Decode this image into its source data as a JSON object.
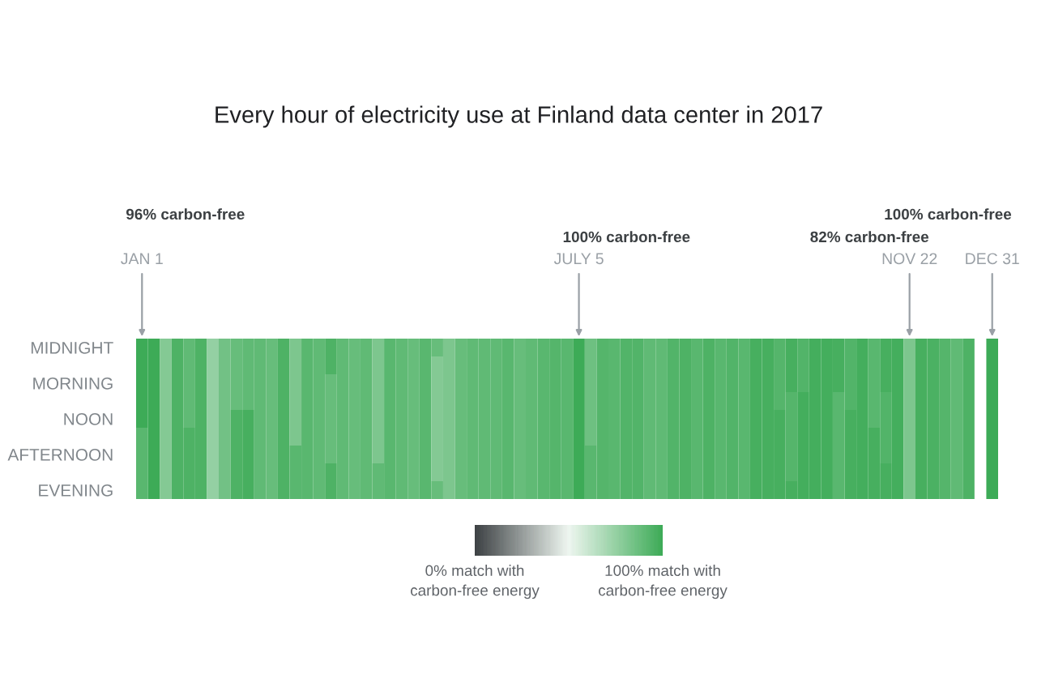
{
  "chart_data": {
    "type": "heatmap",
    "title": "Every hour of electricity use at Finland data center in 2017",
    "categories": [
      "JAN 1",
      null,
      null,
      null,
      null,
      null,
      null,
      null,
      null,
      null,
      null,
      null,
      null,
      null,
      null,
      null,
      null,
      null,
      null,
      null,
      null,
      null,
      null,
      null,
      null,
      null,
      null,
      null,
      null,
      null,
      null,
      null,
      null,
      null,
      null,
      null,
      null,
      "JULY 5",
      null,
      null,
      null,
      null,
      null,
      null,
      null,
      null,
      null,
      null,
      null,
      null,
      null,
      null,
      null,
      null,
      null,
      null,
      null,
      null,
      null,
      null,
      null,
      null,
      null,
      null,
      null,
      "NOV 22",
      null,
      null,
      null,
      null,
      null,
      null,
      "DEC 31"
    ],
    "y_categories": [
      "MIDNIGHT",
      null,
      "MORNING",
      null,
      "NOON",
      null,
      "AFTERNOON",
      null,
      "EVENING"
    ],
    "cells": [
      [
        100,
        100,
        80,
        95,
        90,
        95,
        75,
        85,
        88,
        90,
        90,
        88,
        95,
        82,
        92,
        90,
        95,
        90,
        88,
        90,
        82,
        92,
        90,
        88,
        92,
        88,
        82,
        88,
        90,
        90,
        90,
        92,
        88,
        90,
        92,
        93,
        92,
        100,
        86,
        93,
        92,
        94,
        94,
        90,
        90,
        94,
        95,
        92,
        95,
        92,
        94,
        92,
        97,
        97,
        93,
        97,
        94,
        98,
        98,
        97,
        94,
        98,
        92,
        97,
        98,
        82,
        97,
        96,
        93,
        90,
        95,
        null,
        100
      ],
      [
        100,
        100,
        80,
        95,
        90,
        95,
        75,
        85,
        88,
        90,
        90,
        88,
        95,
        82,
        92,
        90,
        95,
        90,
        88,
        90,
        82,
        92,
        90,
        88,
        92,
        80,
        82,
        88,
        90,
        90,
        90,
        92,
        88,
        90,
        92,
        93,
        92,
        100,
        86,
        93,
        92,
        94,
        94,
        90,
        90,
        94,
        95,
        92,
        95,
        92,
        94,
        92,
        97,
        97,
        93,
        97,
        94,
        98,
        98,
        97,
        94,
        98,
        92,
        97,
        98,
        82,
        97,
        96,
        93,
        90,
        95,
        null,
        100
      ],
      [
        100,
        100,
        80,
        95,
        90,
        95,
        75,
        85,
        88,
        90,
        90,
        88,
        95,
        82,
        92,
        90,
        88,
        90,
        88,
        90,
        82,
        92,
        90,
        88,
        92,
        80,
        82,
        88,
        90,
        90,
        90,
        92,
        88,
        90,
        92,
        93,
        92,
        100,
        86,
        93,
        92,
        94,
        94,
        90,
        90,
        94,
        95,
        92,
        95,
        92,
        94,
        92,
        97,
        97,
        93,
        97,
        94,
        98,
        98,
        97,
        94,
        98,
        92,
        97,
        98,
        82,
        97,
        96,
        93,
        90,
        95,
        null,
        100
      ],
      [
        100,
        100,
        80,
        95,
        90,
        95,
        75,
        85,
        88,
        90,
        90,
        88,
        95,
        82,
        92,
        90,
        88,
        90,
        88,
        90,
        82,
        92,
        90,
        88,
        92,
        80,
        82,
        88,
        90,
        90,
        90,
        92,
        88,
        90,
        92,
        93,
        92,
        100,
        86,
        93,
        92,
        94,
        94,
        90,
        90,
        94,
        95,
        92,
        95,
        92,
        94,
        92,
        97,
        97,
        93,
        93,
        98,
        98,
        98,
        92,
        94,
        98,
        92,
        94,
        98,
        82,
        97,
        96,
        93,
        90,
        95,
        null,
        100
      ],
      [
        100,
        100,
        80,
        95,
        90,
        95,
        75,
        85,
        95,
        97,
        90,
        88,
        95,
        82,
        92,
        90,
        88,
        90,
        88,
        90,
        82,
        92,
        90,
        88,
        92,
        80,
        82,
        88,
        90,
        90,
        90,
        92,
        88,
        90,
        92,
        93,
        92,
        100,
        86,
        93,
        92,
        94,
        94,
        90,
        90,
        94,
        95,
        92,
        95,
        92,
        94,
        92,
        97,
        97,
        97,
        93,
        98,
        98,
        98,
        92,
        97,
        98,
        92,
        94,
        98,
        82,
        97,
        96,
        93,
        90,
        95,
        null,
        100
      ],
      [
        92,
        100,
        80,
        95,
        95,
        95,
        75,
        85,
        95,
        97,
        90,
        88,
        95,
        82,
        92,
        90,
        88,
        90,
        88,
        90,
        82,
        92,
        90,
        88,
        92,
        80,
        82,
        88,
        90,
        90,
        90,
        92,
        88,
        90,
        92,
        93,
        92,
        100,
        86,
        93,
        92,
        94,
        94,
        90,
        90,
        94,
        95,
        92,
        95,
        92,
        94,
        92,
        97,
        97,
        97,
        93,
        98,
        98,
        98,
        92,
        97,
        98,
        97,
        94,
        98,
        82,
        97,
        96,
        93,
        90,
        95,
        null,
        100
      ],
      [
        92,
        100,
        80,
        95,
        95,
        95,
        75,
        85,
        95,
        97,
        90,
        88,
        95,
        92,
        92,
        90,
        88,
        90,
        88,
        90,
        82,
        92,
        90,
        88,
        92,
        80,
        82,
        88,
        90,
        90,
        90,
        92,
        88,
        90,
        92,
        93,
        92,
        100,
        92,
        93,
        92,
        94,
        94,
        90,
        90,
        94,
        95,
        92,
        95,
        92,
        94,
        92,
        97,
        97,
        97,
        93,
        98,
        98,
        98,
        92,
        97,
        98,
        97,
        94,
        98,
        82,
        97,
        96,
        93,
        90,
        95,
        null,
        100
      ],
      [
        92,
        100,
        80,
        95,
        95,
        95,
        75,
        85,
        95,
        97,
        90,
        88,
        95,
        92,
        92,
        90,
        95,
        90,
        88,
        90,
        90,
        92,
        90,
        88,
        92,
        80,
        82,
        88,
        90,
        90,
        90,
        92,
        88,
        90,
        92,
        93,
        92,
        100,
        92,
        93,
        92,
        94,
        94,
        90,
        90,
        94,
        95,
        92,
        95,
        92,
        94,
        92,
        97,
        97,
        97,
        93,
        98,
        98,
        98,
        92,
        97,
        98,
        97,
        97,
        98,
        82,
        97,
        96,
        93,
        90,
        95,
        null,
        100
      ],
      [
        92,
        100,
        80,
        95,
        95,
        95,
        75,
        85,
        95,
        97,
        90,
        88,
        95,
        92,
        92,
        90,
        95,
        90,
        88,
        90,
        90,
        92,
        90,
        88,
        92,
        88,
        82,
        88,
        90,
        90,
        90,
        92,
        88,
        90,
        92,
        93,
        92,
        100,
        92,
        93,
        92,
        94,
        94,
        90,
        90,
        94,
        95,
        92,
        95,
        92,
        94,
        92,
        97,
        97,
        97,
        97,
        98,
        98,
        98,
        92,
        97,
        98,
        97,
        97,
        98,
        82,
        97,
        96,
        93,
        90,
        95,
        null,
        100
      ]
    ],
    "clim": [
      0,
      100
    ],
    "cticks": [
      {
        "value": 0,
        "label": "0% match with\ncarbon-free energy"
      },
      {
        "value": 100,
        "label": "100% match with\ncarbon-free energy"
      }
    ],
    "colors": [
      "#3c4043",
      "#eef6f0",
      "#3dab57"
    ],
    "annotations": [
      "96% carbon-free",
      "100% carbon-free",
      "82% carbon-free",
      "100% carbon-free"
    ]
  }
}
